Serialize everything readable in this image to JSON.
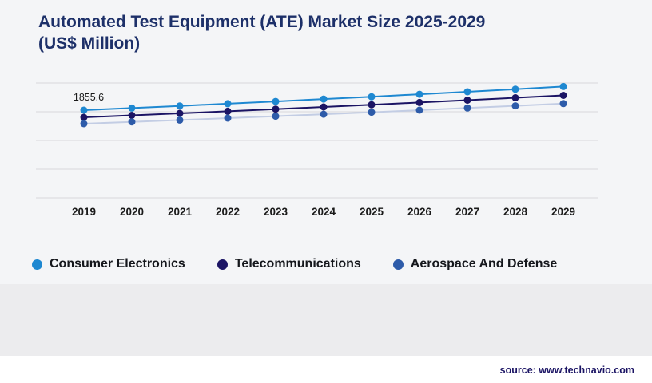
{
  "page": {
    "title_line1": "Automated Test Equipment (ATE) Market Size 2025-2029",
    "title_line2": "(US$ Million)",
    "source": "source: www.technavio.com",
    "background_color": "#f4f5f7",
    "title_color": "#1d3069",
    "source_color": "#1b1464"
  },
  "chart_data": {
    "type": "line",
    "title": "Automated Test Equipment (ATE) Market Size 2025-2029 (US$ Million)",
    "xlabel": "",
    "ylabel": "",
    "categories": [
      "2019",
      "2020",
      "2021",
      "2022",
      "2023",
      "2024",
      "2025",
      "2026",
      "2027",
      "2028",
      "2029"
    ],
    "series": [
      {
        "name": "Consumer Electronics",
        "color": "#1e88d1",
        "line_color": "#1e88d1",
        "values": [
          1855.6,
          1900,
          1946,
          1993,
          2041,
          2090,
          2140,
          2192,
          2245,
          2299,
          2355
        ]
      },
      {
        "name": "Telecommunications",
        "color": "#1b1464",
        "line_color": "#1b1464",
        "values": [
          1704,
          1746,
          1789,
          1833,
          1878,
          1924,
          1971,
          2019,
          2068,
          2118,
          2169
        ]
      },
      {
        "name": "Aerospace And Defense",
        "color": "#2d5ba9",
        "line_color": "#c3cde4",
        "values": [
          1569,
          1608,
          1647,
          1687,
          1728,
          1770,
          1813,
          1857,
          1902,
          1948,
          1995
        ]
      }
    ],
    "ylim": [
      0,
      2430
    ],
    "grid": true,
    "gridline_count": 5,
    "gridline_color": "#d8d8db",
    "axis_label_color": "#1a1a1a",
    "annotation": {
      "text": "1855.6",
      "series_index": 0,
      "point_index": 0
    },
    "legend_position": "bottom"
  },
  "legend": {
    "items": [
      {
        "label": "Consumer Electronics",
        "color": "#1e88d1"
      },
      {
        "label": "Telecommunications",
        "color": "#1b1464"
      },
      {
        "label": "Aerospace And Defense",
        "color": "#2d5ba9"
      }
    ]
  }
}
